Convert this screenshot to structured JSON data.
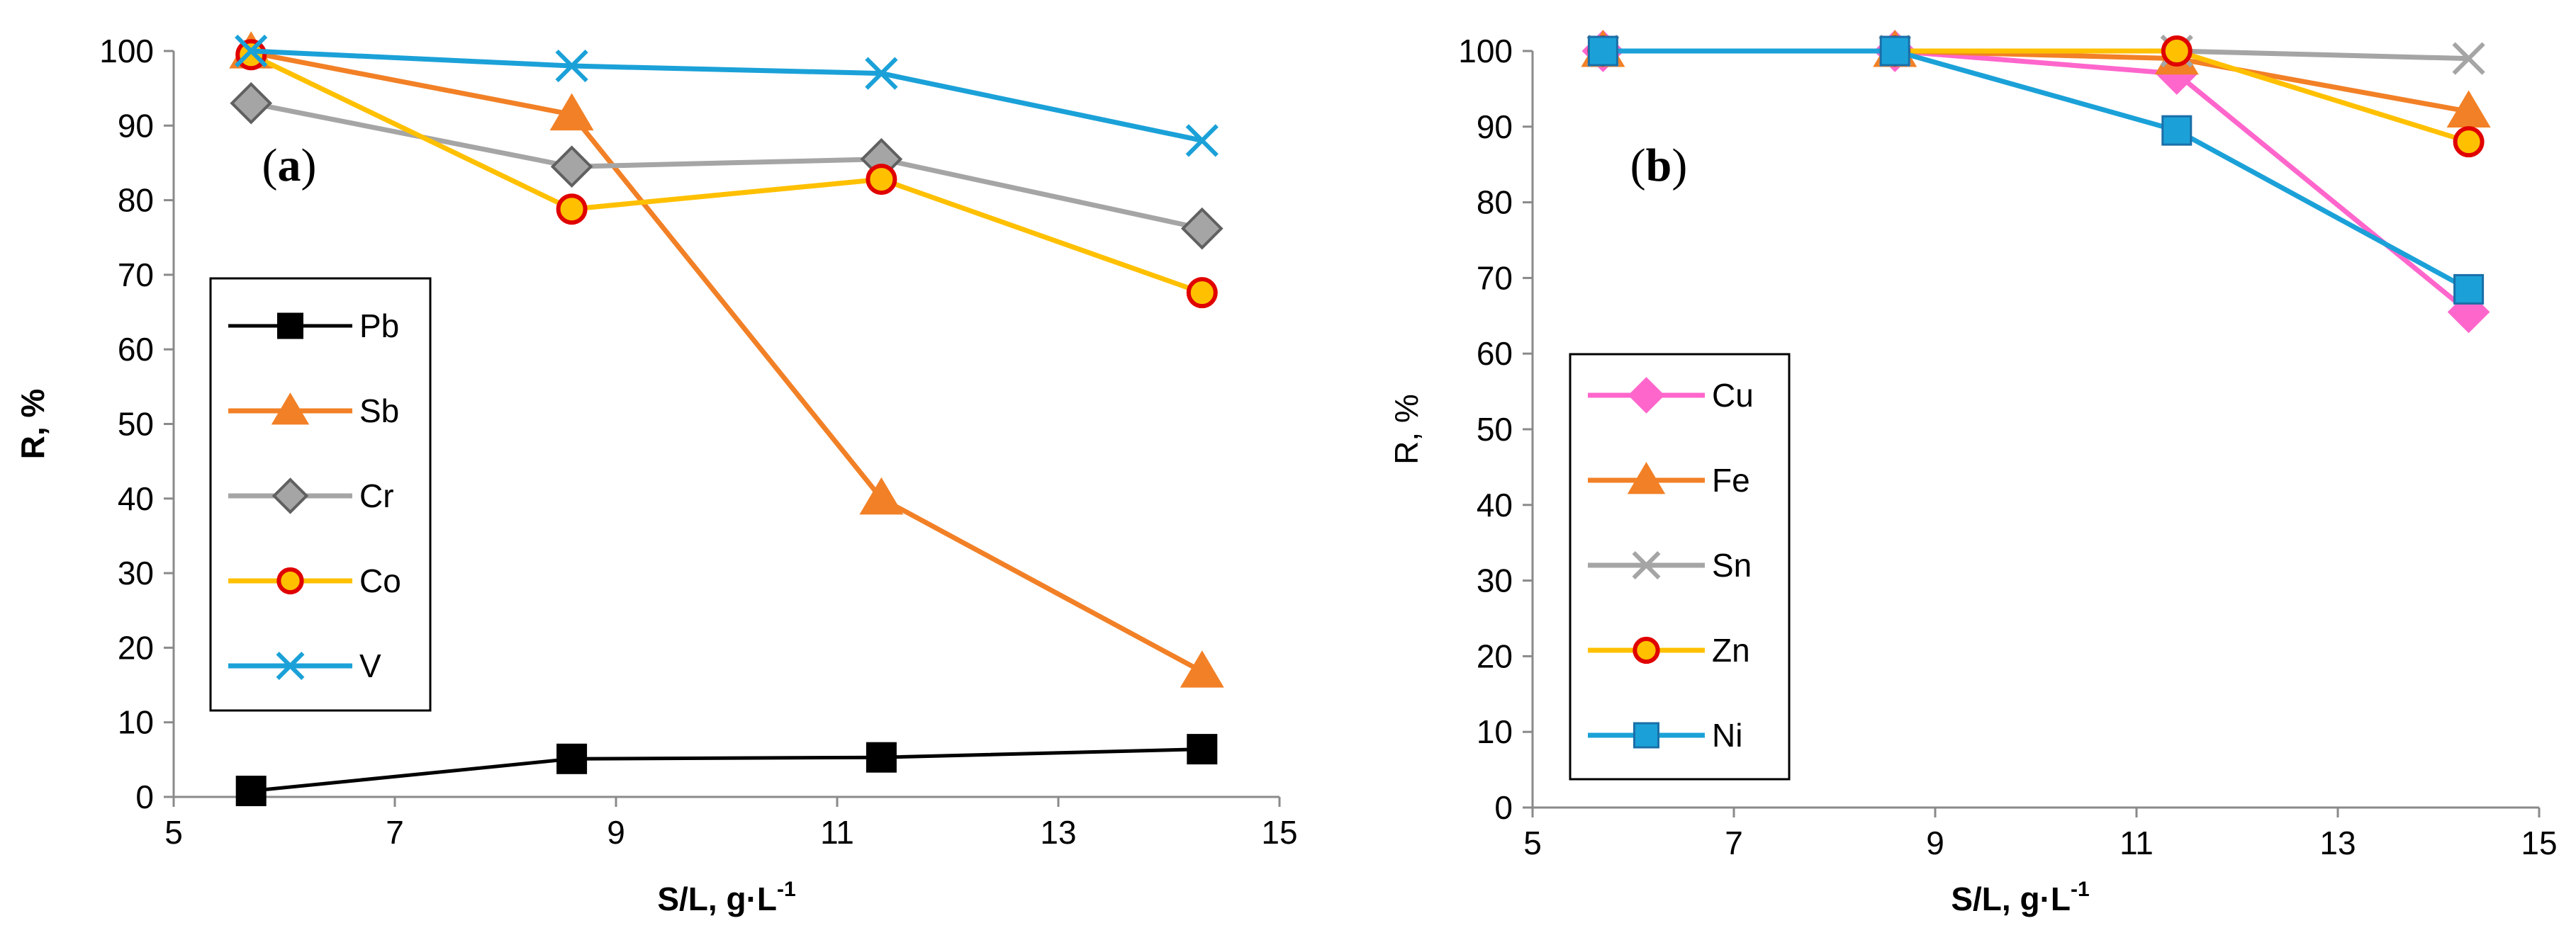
{
  "chart_data": [
    {
      "type": "line",
      "panel_label": "a",
      "xlabel": "S/L, g·L",
      "xlabel_sup": "-1",
      "ylabel": "R, %",
      "xlim": [
        5,
        15
      ],
      "ylim": [
        0,
        100
      ],
      "x_ticks": [
        "5",
        "7",
        "9",
        "11",
        "13",
        "15"
      ],
      "y_ticks": [
        "0",
        "10",
        "20",
        "30",
        "40",
        "50",
        "60",
        "70",
        "80",
        "90",
        "100"
      ],
      "grid": false,
      "legend_position": "left",
      "x": [
        5.7,
        8.6,
        11.4,
        14.3
      ],
      "series": [
        {
          "name": "Pb",
          "values": [
            0.8,
            5.1,
            5.3,
            6.4
          ],
          "color": "#000000",
          "marker": "square"
        },
        {
          "name": "Sb",
          "values": [
            99.8,
            91.5,
            40.0,
            16.8
          ],
          "color": "#F28026",
          "marker": "triangle"
        },
        {
          "name": "Cr",
          "values": [
            93.0,
            84.5,
            85.5,
            76.2
          ],
          "color": "#A5A5A5",
          "marker": "diamond"
        },
        {
          "name": "Co",
          "values": [
            99.5,
            78.8,
            82.8,
            67.6
          ],
          "color": "#FFC000",
          "marker": "circle"
        },
        {
          "name": "V",
          "values": [
            100.0,
            98.0,
            97.0,
            88.0
          ],
          "color": "#1BA1D8",
          "marker": "x"
        }
      ]
    },
    {
      "type": "line",
      "panel_label": "b",
      "xlabel": "S/L, g·L",
      "xlabel_sup": "-1",
      "ylabel": "R, %",
      "xlim": [
        5,
        15
      ],
      "ylim": [
        0,
        100
      ],
      "x_ticks": [
        "5",
        "7",
        "9",
        "11",
        "13",
        "15"
      ],
      "y_ticks": [
        "0",
        "10",
        "20",
        "30",
        "40",
        "50",
        "60",
        "70",
        "80",
        "90",
        "100"
      ],
      "grid": false,
      "legend_position": "left",
      "x": [
        5.7,
        8.6,
        11.4,
        14.3
      ],
      "series": [
        {
          "name": "Cu",
          "values": [
            100.0,
            100.0,
            97.0,
            65.5
          ],
          "color": "#FF66CC",
          "marker": "diamond"
        },
        {
          "name": "Fe",
          "values": [
            100.0,
            100.0,
            99.0,
            92.0
          ],
          "color": "#F28026",
          "marker": "triangle"
        },
        {
          "name": "Sn",
          "values": [
            100.0,
            100.0,
            100.0,
            99.0
          ],
          "color": "#A5A5A5",
          "marker": "x"
        },
        {
          "name": "Zn",
          "values": [
            100.0,
            100.0,
            100.0,
            88.0
          ],
          "color": "#FFC000",
          "marker": "circle"
        },
        {
          "name": "Ni",
          "values": [
            100.0,
            100.0,
            89.5,
            68.5
          ],
          "color": "#1BA1D8",
          "marker": "square"
        }
      ]
    }
  ]
}
